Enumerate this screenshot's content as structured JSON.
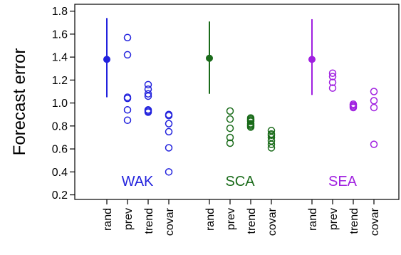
{
  "chart_data": {
    "type": "scatter",
    "ylabel": "Forecast error",
    "ylim": [
      0.16,
      1.86
    ],
    "yticks": [
      0.2,
      0.4,
      0.6,
      0.8,
      1.0,
      1.2,
      1.4,
      1.6,
      1.8
    ],
    "ytick_labels": [
      "0.2",
      "0.4",
      "0.6",
      "0.8",
      "1.0",
      "1.2",
      "1.4",
      "1.6",
      "1.8"
    ],
    "grid": false,
    "legend": "none",
    "categories": [
      "rand",
      "prev",
      "trend",
      "covar"
    ],
    "groups": [
      {
        "name": "WAK",
        "color": "#2222dd",
        "rand": {
          "mean": 1.38,
          "low": 1.05,
          "high": 1.74
        },
        "prev": [
          1.57,
          1.42,
          1.05,
          1.04,
          0.94,
          0.85
        ],
        "trend": [
          1.16,
          1.12,
          1.08,
          1.06,
          0.94,
          0.93,
          0.92
        ],
        "covar": [
          0.9,
          0.89,
          0.82,
          0.75,
          0.61,
          0.4
        ]
      },
      {
        "name": "SCA",
        "color": "#1a6b1a",
        "rand": {
          "mean": 1.39,
          "low": 1.08,
          "high": 1.71
        },
        "prev": [
          0.93,
          0.86,
          0.78,
          0.7,
          0.65
        ],
        "trend": [
          0.87,
          0.86,
          0.85,
          0.84,
          0.82,
          0.81,
          0.8,
          0.79
        ],
        "covar": [
          0.76,
          0.73,
          0.72,
          0.7,
          0.67,
          0.64,
          0.61
        ]
      },
      {
        "name": "SEA",
        "color": "#a020e0",
        "rand": {
          "mean": 1.38,
          "low": 1.07,
          "high": 1.73
        },
        "prev": [
          1.26,
          1.23,
          1.18,
          1.13
        ],
        "trend": [
          0.99,
          0.98,
          0.97,
          0.96
        ],
        "covar": [
          1.1,
          1.02,
          0.96,
          0.64
        ]
      }
    ]
  }
}
